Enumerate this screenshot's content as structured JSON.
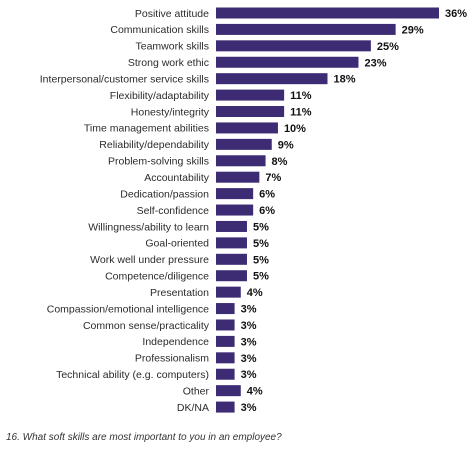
{
  "caption": "16. What soft skills are most important to you in an employee?",
  "chart_data": {
    "type": "bar",
    "orientation": "horizontal",
    "categories": [
      "Positive attitude",
      "Communication skills",
      "Teamwork skills",
      "Strong work ethic",
      "Interpersonal/customer service skills",
      "Flexibility/adaptability",
      "Honesty/integrity",
      "Time management abilities",
      "Reliability/dependability",
      "Problem-solving skills",
      "Accountability",
      "Dedication/passion",
      "Self-confidence",
      "Willingness/ability to learn",
      "Goal-oriented",
      "Work well under pressure",
      "Competence/diligence",
      "Presentation",
      "Compassion/emotional intelligence",
      "Common sense/practicality",
      "Independence",
      "Professionalism",
      "Technical ability (e.g. computers)",
      "Other",
      "DK/NA"
    ],
    "values": [
      36,
      29,
      25,
      23,
      18,
      11,
      11,
      10,
      9,
      8,
      7,
      6,
      6,
      5,
      5,
      5,
      5,
      4,
      3,
      3,
      3,
      3,
      3,
      4,
      3
    ],
    "value_labels": [
      "36%",
      "29%",
      "25%",
      "23%",
      "18%",
      "11%",
      "11%",
      "10%",
      "9%",
      "8%",
      "7%",
      "6%",
      "6%",
      "5%",
      "5%",
      "5%",
      "5%",
      "4%",
      "3%",
      "3%",
      "3%",
      "3%",
      "3%",
      "4%",
      "3%"
    ],
    "unit": "%",
    "xlim": [
      0,
      36
    ],
    "grid": false,
    "bar_color": "#3d2b73"
  }
}
